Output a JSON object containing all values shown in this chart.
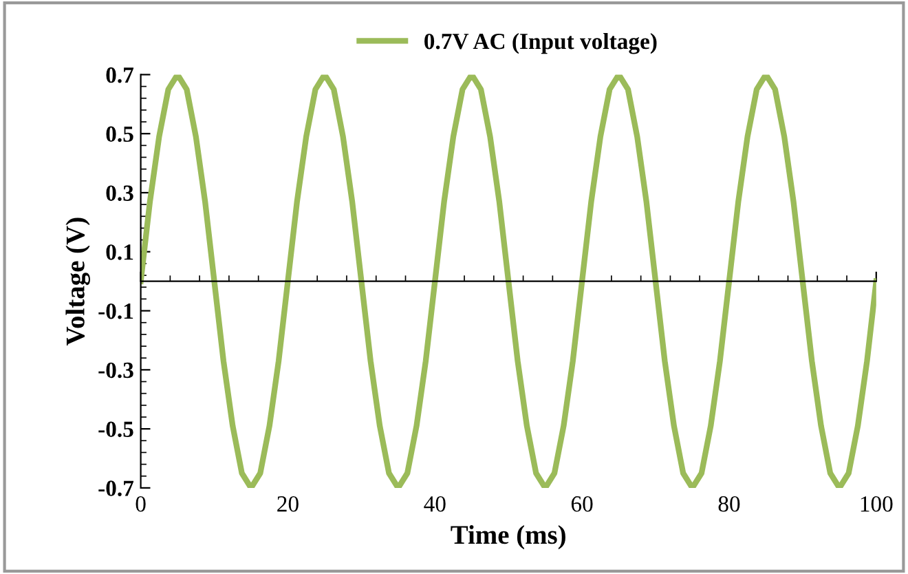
{
  "chart_data": {
    "type": "line",
    "xlabel": "Time (ms)",
    "ylabel": "Voltage (V)",
    "x": [
      0,
      1.25,
      2.5,
      3.75,
      5,
      6.25,
      7.5,
      8.75,
      10,
      11.25,
      12.5,
      13.75,
      15,
      16.25,
      17.5,
      18.75,
      20,
      21.25,
      22.5,
      23.75,
      25,
      26.25,
      27.5,
      28.75,
      30,
      31.25,
      32.5,
      33.75,
      35,
      36.25,
      37.5,
      38.75,
      40,
      41.25,
      42.5,
      43.75,
      45,
      46.25,
      47.5,
      48.75,
      50,
      51.25,
      52.5,
      53.75,
      55,
      56.25,
      57.5,
      58.75,
      60,
      61.25,
      62.5,
      63.75,
      65,
      66.25,
      67.5,
      68.75,
      70,
      71.25,
      72.5,
      73.75,
      75,
      76.25,
      77.5,
      78.75,
      80,
      81.25,
      82.5,
      83.75,
      85,
      86.25,
      87.5,
      88.75,
      90,
      91.25,
      92.5,
      93.75,
      95,
      96.25,
      97.5,
      98.75,
      100
    ],
    "series": [
      {
        "name": "0.7V AC (Input voltage)",
        "color": "#9bbb59",
        "values": [
          0,
          0.27,
          0.49,
          0.65,
          0.7,
          0.65,
          0.49,
          0.27,
          0,
          -0.27,
          -0.49,
          -0.65,
          -0.7,
          -0.65,
          -0.49,
          -0.27,
          0,
          0.27,
          0.49,
          0.65,
          0.7,
          0.65,
          0.49,
          0.27,
          0,
          -0.27,
          -0.49,
          -0.65,
          -0.7,
          -0.65,
          -0.49,
          -0.27,
          0,
          0.27,
          0.49,
          0.65,
          0.7,
          0.65,
          0.49,
          0.27,
          0,
          -0.27,
          -0.49,
          -0.65,
          -0.7,
          -0.65,
          -0.49,
          -0.27,
          0,
          0.27,
          0.49,
          0.65,
          0.7,
          0.65,
          0.49,
          0.27,
          0,
          -0.27,
          -0.49,
          -0.65,
          -0.7,
          -0.65,
          -0.49,
          -0.27,
          0,
          0.27,
          0.49,
          0.65,
          0.7,
          0.65,
          0.49,
          0.27,
          0,
          -0.27,
          -0.49,
          -0.65,
          -0.7,
          -0.65,
          -0.49,
          -0.27,
          0
        ]
      }
    ],
    "xlim": [
      0,
      100
    ],
    "xticks": [
      0,
      20,
      40,
      60,
      80,
      100
    ],
    "ylim": [
      -0.7,
      0.7
    ],
    "yticks": [
      -0.7,
      -0.5,
      -0.3,
      -0.1,
      0.1,
      0.3,
      0.5,
      0.7
    ],
    "grid": false,
    "legend": "top",
    "marker": "none",
    "line_style": "solid"
  }
}
